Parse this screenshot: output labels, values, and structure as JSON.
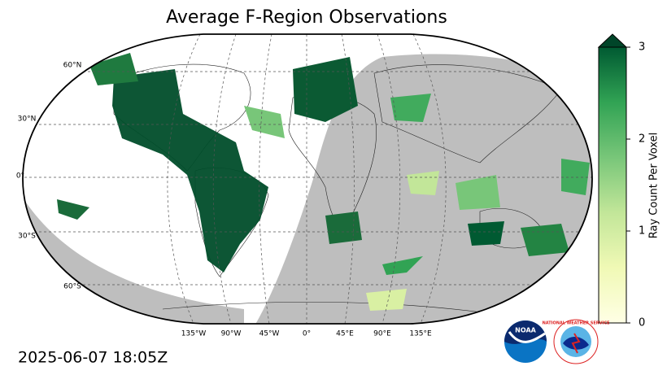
{
  "title": "Average F-Region Observations",
  "timestamp": "2025-06-07 18:05Z",
  "map": {
    "lat_labels": [
      "60°N",
      "30°N",
      "0°",
      "30°S",
      "60°S"
    ],
    "lon_labels": [
      "135°W",
      "90°W",
      "45°W",
      "0°",
      "45°E",
      "90°E",
      "135°E"
    ]
  },
  "colorbar": {
    "label": "Ray Count Per Voxel",
    "range": [
      0,
      3
    ],
    "ticks": [
      0,
      1,
      2,
      3
    ]
  },
  "logos": {
    "noaa": "NOAA",
    "nws": "NATIONAL WEATHER SERVICE"
  }
}
